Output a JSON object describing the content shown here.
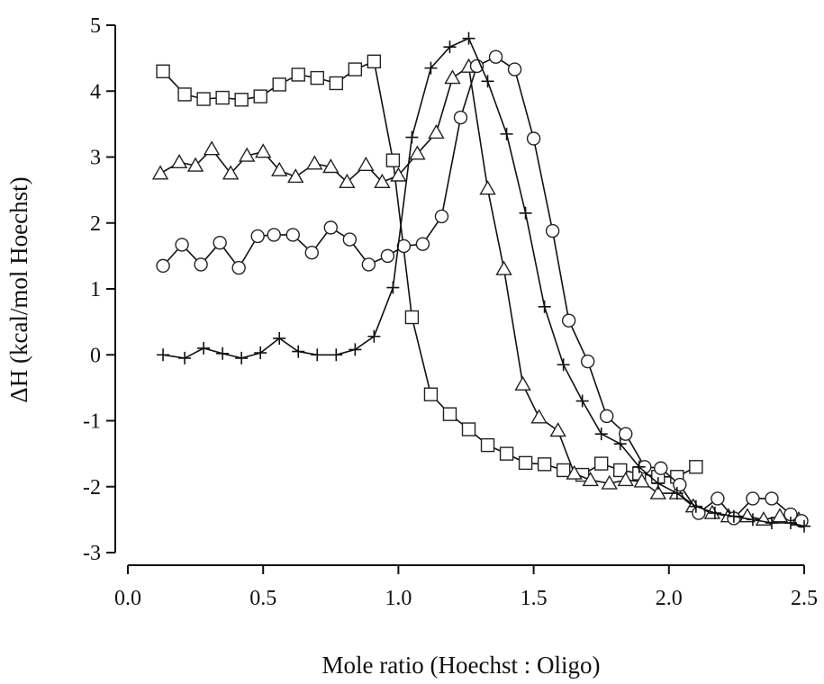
{
  "chart_data": {
    "type": "line",
    "title": "",
    "xlabel": "Mole ratio (Hoechst : Oligo)",
    "ylabel": "ΔH (kcal/mol Hoechst)",
    "xlim": [
      0.0,
      2.5
    ],
    "ylim": [
      -3,
      5
    ],
    "xticks": [
      0.0,
      0.5,
      1.0,
      1.5,
      2.0,
      2.5
    ],
    "xtick_labels": [
      "0.0",
      "0.5",
      "1.0",
      "1.5",
      "2.0",
      "2.5"
    ],
    "yticks": [
      -3,
      -2,
      -1,
      0,
      1,
      2,
      3,
      4,
      5
    ],
    "ytick_labels": [
      "-3",
      "-2",
      "-1",
      "0",
      "1",
      "2",
      "3",
      "4",
      "5"
    ],
    "grid": false,
    "legend": "none",
    "series": [
      {
        "marker": "square",
        "x": [
          0.13,
          0.21,
          0.28,
          0.35,
          0.42,
          0.49,
          0.56,
          0.63,
          0.7,
          0.77,
          0.84,
          0.91,
          0.98,
          1.05,
          1.12,
          1.19,
          1.26,
          1.33,
          1.4,
          1.47,
          1.54,
          1.61,
          1.68,
          1.75,
          1.82,
          1.89,
          1.96,
          2.03,
          2.1
        ],
        "y": [
          4.3,
          3.95,
          3.88,
          3.9,
          3.87,
          3.92,
          4.1,
          4.25,
          4.2,
          4.12,
          4.33,
          4.45,
          2.95,
          0.57,
          -0.6,
          -0.9,
          -1.13,
          -1.37,
          -1.5,
          -1.64,
          -1.66,
          -1.75,
          -1.82,
          -1.65,
          -1.75,
          -1.8,
          -1.85,
          -1.85,
          -1.7
        ]
      },
      {
        "marker": "triangle",
        "x": [
          0.12,
          0.19,
          0.25,
          0.31,
          0.38,
          0.44,
          0.5,
          0.56,
          0.62,
          0.69,
          0.75,
          0.81,
          0.88,
          0.94,
          1.0,
          1.07,
          1.14,
          1.2,
          1.26,
          1.33,
          1.39,
          1.46,
          1.52,
          1.59,
          1.65,
          1.71,
          1.78,
          1.84,
          1.9,
          1.96,
          2.03,
          2.09,
          2.16,
          2.22,
          2.29,
          2.35,
          2.41,
          2.48
        ],
        "y": [
          2.75,
          2.92,
          2.87,
          3.12,
          2.75,
          3.02,
          3.08,
          2.8,
          2.7,
          2.9,
          2.85,
          2.62,
          2.88,
          2.62,
          2.72,
          3.05,
          3.37,
          4.2,
          4.37,
          2.52,
          1.3,
          -0.45,
          -0.95,
          -1.15,
          -1.8,
          -1.9,
          -1.95,
          -1.9,
          -1.92,
          -2.1,
          -2.1,
          -2.3,
          -2.4,
          -2.45,
          -2.45,
          -2.5,
          -2.45,
          -2.5
        ]
      },
      {
        "marker": "circle",
        "x": [
          0.13,
          0.2,
          0.27,
          0.34,
          0.41,
          0.48,
          0.54,
          0.61,
          0.68,
          0.75,
          0.82,
          0.89,
          0.96,
          1.02,
          1.09,
          1.16,
          1.23,
          1.29,
          1.36,
          1.43,
          1.5,
          1.57,
          1.63,
          1.7,
          1.77,
          1.84,
          1.91,
          1.97,
          2.04,
          2.11,
          2.18,
          2.24,
          2.31,
          2.38,
          2.45,
          2.49
        ],
        "y": [
          1.35,
          1.67,
          1.37,
          1.7,
          1.32,
          1.8,
          1.82,
          1.82,
          1.55,
          1.93,
          1.75,
          1.37,
          1.5,
          1.65,
          1.68,
          2.1,
          3.6,
          4.38,
          4.52,
          4.33,
          3.28,
          1.88,
          0.52,
          -0.1,
          -0.93,
          -1.2,
          -1.7,
          -1.72,
          -1.97,
          -2.4,
          -2.18,
          -2.48,
          -2.18,
          -2.18,
          -2.42,
          -2.52
        ]
      },
      {
        "marker": "plus",
        "x": [
          0.13,
          0.21,
          0.28,
          0.35,
          0.42,
          0.49,
          0.56,
          0.63,
          0.7,
          0.77,
          0.84,
          0.91,
          0.98,
          1.05,
          1.12,
          1.19,
          1.26,
          1.33,
          1.4,
          1.47,
          1.54,
          1.61,
          1.68,
          1.75,
          1.82,
          1.89,
          1.96,
          2.03,
          2.1,
          2.17,
          2.24,
          2.31,
          2.38,
          2.45,
          2.5
        ],
        "y": [
          0.0,
          -0.05,
          0.1,
          0.02,
          -0.05,
          0.03,
          0.25,
          0.05,
          0.0,
          0.0,
          0.08,
          0.28,
          1.02,
          3.3,
          4.35,
          4.67,
          4.8,
          4.15,
          3.35,
          2.15,
          0.73,
          -0.15,
          -0.7,
          -1.2,
          -1.35,
          -1.7,
          -1.95,
          -2.1,
          -2.3,
          -2.4,
          -2.45,
          -2.5,
          -2.55,
          -2.55,
          -2.6
        ]
      }
    ]
  }
}
